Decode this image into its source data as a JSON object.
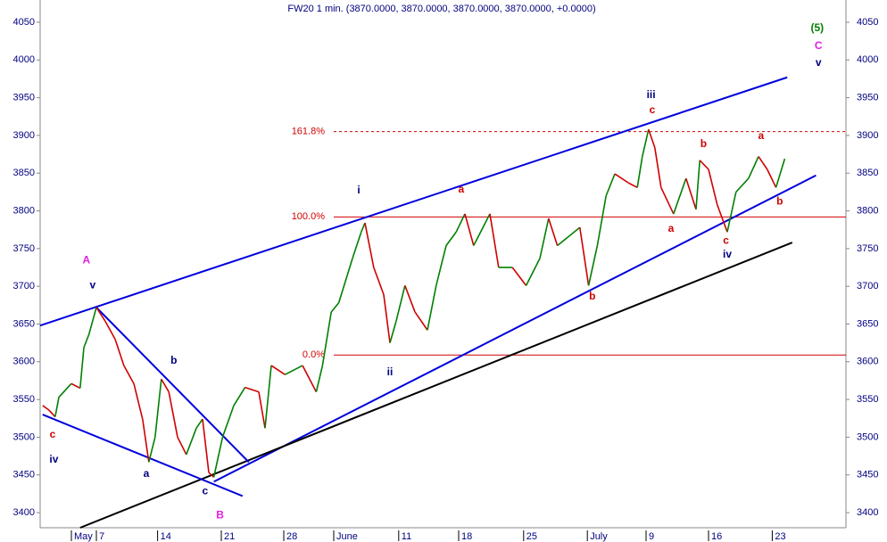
{
  "chart_data": {
    "type": "line",
    "title": "FW20 1 min. (3870.0000, 3870.0000, 3870.0000, 3870.0000, +0.0000)",
    "x": [
      -4.4,
      -3.9,
      -3.4,
      -3.1,
      -2.1,
      -1.4,
      -1.1,
      -0.7,
      -0.1,
      0.6,
      1.4,
      2.1,
      2.9,
      3.6,
      4.1,
      4.6,
      5.1,
      5.7,
      6.4,
      7.1,
      7.9,
      8.4,
      8.9,
      9.3,
      10,
      10.9,
      11.8,
      12.9,
      13.4,
      13.9,
      15,
      16.4,
      17.5,
      18,
      18.7,
      19.3,
      20.4,
      21.1,
      21.4,
      22.1,
      22.9,
      23.4,
      23.9,
      24.6,
      25.4,
      26.4,
      27.1,
      27.9,
      28.7,
      29.4,
      30.1,
      31.4,
      32.1,
      33.2,
      34.3,
      35.4,
      36.1,
      36.8,
      38.6,
      39.3,
      40,
      40.7,
      41.4,
      42.5,
      43.2,
      43.6,
      44.1,
      44.6,
      45.1,
      46.1,
      47.1,
      47.9,
      48.2,
      48.9,
      49.6,
      50.4,
      51.1,
      52.1,
      52.9,
      53.6,
      54.3,
      55
    ],
    "series": [
      {
        "name": "FW20",
        "up_color": "#008000",
        "down_color": "#d00000",
        "values": [
          3542,
          3536,
          3527,
          3553,
          3571,
          3565,
          3619,
          3636,
          3672,
          3654,
          3630,
          3595,
          3571,
          3524,
          3467,
          3500,
          3577,
          3560,
          3500,
          3477,
          3512,
          3524,
          3453,
          3447,
          3500,
          3542,
          3566,
          3560,
          3512,
          3595,
          3583,
          3595,
          3560,
          3595,
          3666,
          3678,
          3737,
          3772,
          3784,
          3725,
          3689,
          3625,
          3654,
          3701,
          3666,
          3642,
          3701,
          3754,
          3772,
          3796,
          3754,
          3796,
          3725,
          3725,
          3701,
          3737,
          3790,
          3754,
          3778,
          3701,
          3754,
          3820,
          3849,
          3837,
          3831,
          3872,
          3908,
          3884,
          3831,
          3796,
          3843,
          3802,
          3867,
          3855,
          3808,
          3772,
          3825,
          3843,
          3872,
          3855,
          3831,
          3869
        ]
      }
    ],
    "xlim": [
      -4.6,
      59.9
    ],
    "ylim": [
      3380,
      4079.5
    ],
    "xticks": [
      {
        "value": -2.1,
        "label": "May"
      },
      {
        "value": -0.1,
        "label": "7"
      },
      {
        "value": 4.8,
        "label": "14"
      },
      {
        "value": 9.9,
        "label": "21"
      },
      {
        "value": 14.9,
        "label": "28"
      },
      {
        "value": 18.9,
        "label": "June"
      },
      {
        "value": 24.1,
        "label": "11"
      },
      {
        "value": 28.9,
        "label": "18"
      },
      {
        "value": 34.1,
        "label": "25"
      },
      {
        "value": 39.2,
        "label": "July"
      },
      {
        "value": 43.9,
        "label": "9"
      },
      {
        "value": 48.9,
        "label": "16"
      },
      {
        "value": 54,
        "label": "23"
      }
    ],
    "yticks": [
      3400,
      3450,
      3500,
      3550,
      3600,
      3650,
      3700,
      3750,
      3800,
      3850,
      3900,
      3950,
      4000,
      4050
    ],
    "trendlines": [
      {
        "x1": -4.6,
        "y1": 3648,
        "x2": 55.2,
        "y2": 3977,
        "color": "#0000dd"
      },
      {
        "x1": 9.3,
        "y1": 3441,
        "x2": 57.5,
        "y2": 3847,
        "color": "#0000dd"
      },
      {
        "x1": -1.4,
        "y1": 3380,
        "x2": 55.6,
        "y2": 3758,
        "color": "#000000"
      },
      {
        "x1": -0.1,
        "y1": 3672,
        "x2": 12.1,
        "y2": 3467,
        "color": "#0000dd"
      },
      {
        "x1": -4.4,
        "y1": 3530,
        "x2": 11.6,
        "y2": 3422,
        "color": "#0000dd"
      }
    ],
    "fib_levels": [
      {
        "name": "161.8%",
        "value": 3905,
        "x_start": 18.9,
        "dashed": true
      },
      {
        "name": "100.0%",
        "value": 3792,
        "x_start": 18.9,
        "dashed": false
      },
      {
        "name": "0.0%",
        "value": 3609,
        "x_start": 18.9,
        "dashed": false
      }
    ],
    "fib_color": "#d00000",
    "wave_labels": [
      {
        "text": "A",
        "x": -0.9,
        "y": 3734,
        "color": "#e020e0"
      },
      {
        "text": "v",
        "x": -0.4,
        "y": 3701,
        "color": "#000080"
      },
      {
        "text": "b",
        "x": 6.1,
        "y": 3601,
        "color": "#000080"
      },
      {
        "text": "a",
        "x": 3.9,
        "y": 3451,
        "color": "#000080"
      },
      {
        "text": "c",
        "x": 8.6,
        "y": 3428,
        "color": "#000080"
      },
      {
        "text": "B",
        "x": 9.8,
        "y": 3396,
        "color": "#e020e0"
      },
      {
        "text": "c",
        "x": -3.6,
        "y": 3503,
        "color": "#d00000"
      },
      {
        "text": "iv",
        "x": -3.5,
        "y": 3470,
        "color": "#000080"
      },
      {
        "text": "i",
        "x": 20.9,
        "y": 3827,
        "color": "#000080"
      },
      {
        "text": "ii",
        "x": 23.4,
        "y": 3586,
        "color": "#000080"
      },
      {
        "text": "a",
        "x": 29.1,
        "y": 3828,
        "color": "#d00000"
      },
      {
        "text": "b",
        "x": 39.6,
        "y": 3686,
        "color": "#d00000"
      },
      {
        "text": "iii",
        "x": 44.3,
        "y": 3953,
        "color": "#000080"
      },
      {
        "text": "c",
        "x": 44.4,
        "y": 3933,
        "color": "#d00000"
      },
      {
        "text": "b",
        "x": 48.5,
        "y": 3888,
        "color": "#d00000"
      },
      {
        "text": "a",
        "x": 45.9,
        "y": 3776,
        "color": "#d00000"
      },
      {
        "text": "c",
        "x": 50.3,
        "y": 3760,
        "color": "#d00000"
      },
      {
        "text": "iv",
        "x": 50.4,
        "y": 3742,
        "color": "#000080"
      },
      {
        "text": "a",
        "x": 53.1,
        "y": 3899,
        "color": "#d00000"
      },
      {
        "text": "b",
        "x": 54.6,
        "y": 3812,
        "color": "#d00000"
      },
      {
        "text": "(5)",
        "x": 57.6,
        "y": 4042,
        "color": "#008000"
      },
      {
        "text": "C",
        "x": 57.7,
        "y": 4018,
        "color": "#e020e0"
      },
      {
        "text": "v",
        "x": 57.7,
        "y": 3996,
        "color": "#000080"
      }
    ]
  }
}
